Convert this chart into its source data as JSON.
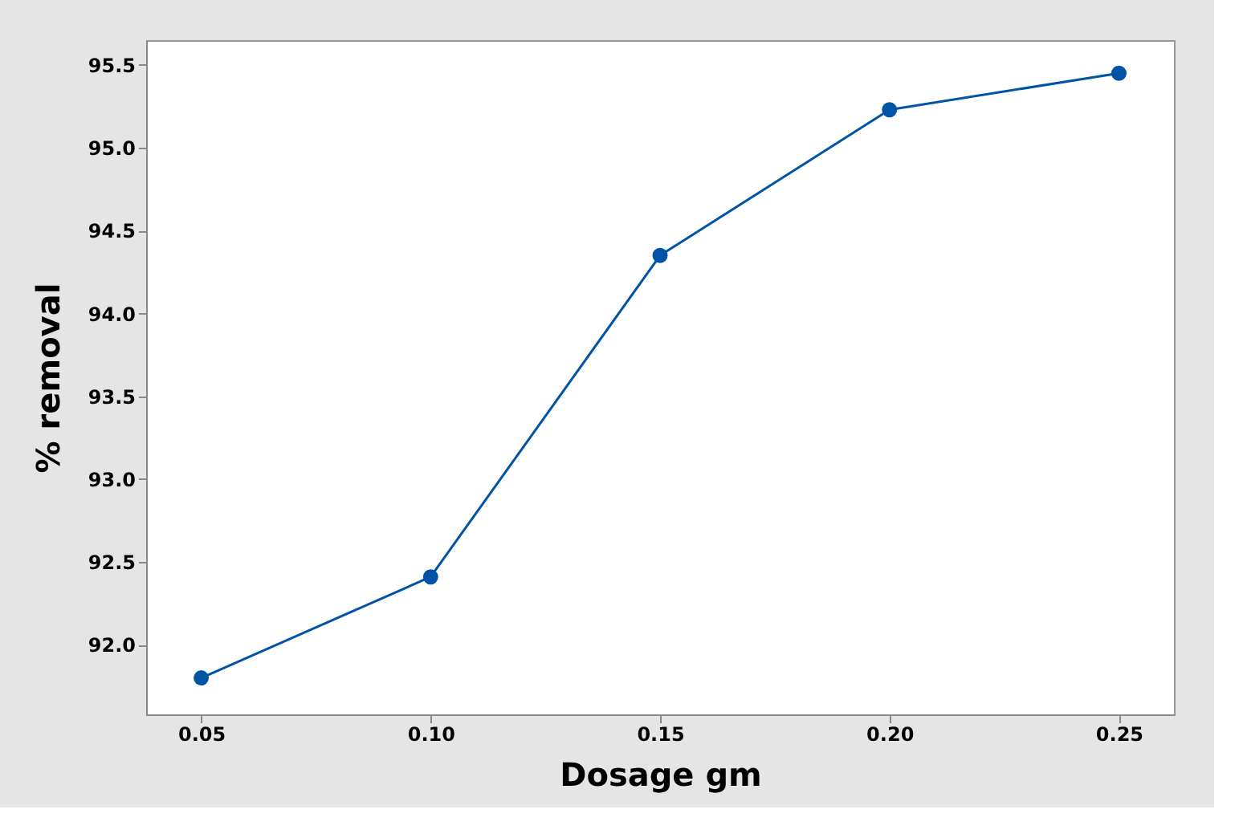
{
  "chart_data": {
    "type": "line",
    "xlabel": "Dosage gm",
    "ylabel": "% removal",
    "x": [
      0.05,
      0.1,
      0.15,
      0.2,
      0.25
    ],
    "series": [
      {
        "color": "#0054a6",
        "values": [
          91.8,
          92.41,
          94.35,
          95.23,
          95.45
        ]
      }
    ],
    "xlim": [
      0.038,
      0.262
    ],
    "ylim": [
      91.58,
      95.65
    ],
    "xticks": [
      {
        "value": 0.05,
        "label": "0.05"
      },
      {
        "value": 0.1,
        "label": "0.10"
      },
      {
        "value": 0.15,
        "label": "0.15"
      },
      {
        "value": 0.2,
        "label": "0.20"
      },
      {
        "value": 0.25,
        "label": "0.25"
      }
    ],
    "yticks": [
      {
        "value": 92,
        "label": "92.0"
      },
      {
        "value": 92.5,
        "label": "92.5"
      },
      {
        "value": 93,
        "label": "93.0"
      },
      {
        "value": 93.5,
        "label": "93.5"
      },
      {
        "value": 94,
        "label": "94.0"
      },
      {
        "value": 94.5,
        "label": "94.5"
      },
      {
        "value": 95,
        "label": "95.0"
      },
      {
        "value": 95.5,
        "label": "95.5"
      }
    ],
    "marker": "circle",
    "grid": false
  }
}
